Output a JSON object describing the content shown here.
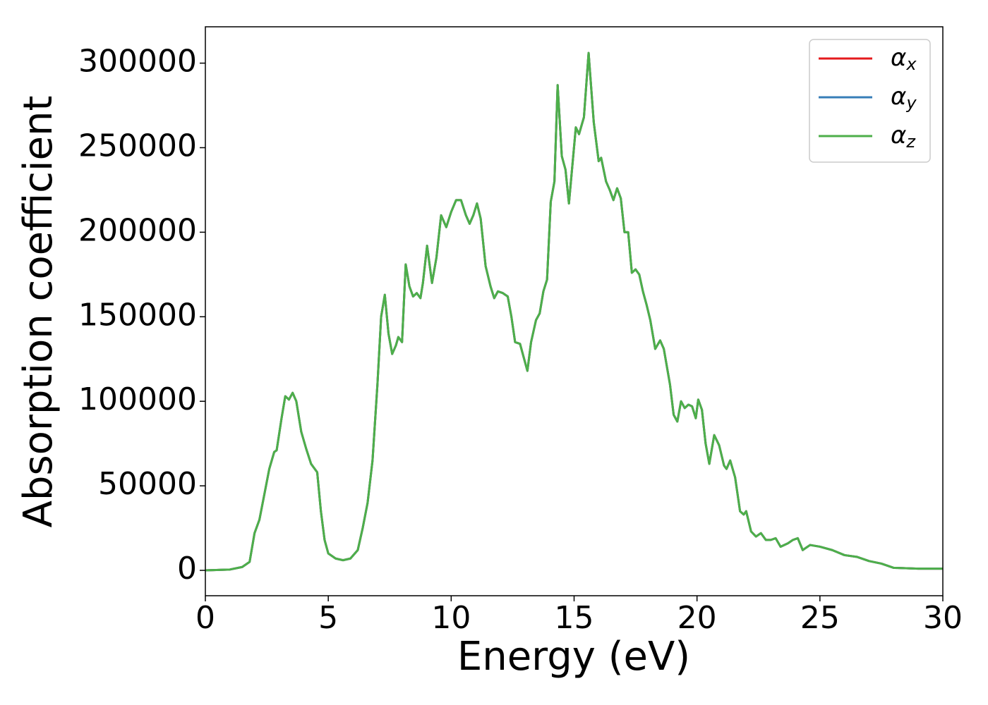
{
  "chart_data": {
    "type": "line",
    "xlabel": "Energy (eV)",
    "ylabel": "Absorption coefficient",
    "xlim": [
      0,
      30
    ],
    "ylim": [
      -15000,
      321500
    ],
    "xticks": [
      0,
      5,
      10,
      15,
      20,
      25,
      30
    ],
    "yticks": [
      0,
      50000,
      100000,
      150000,
      200000,
      250000,
      300000
    ],
    "legend": "upper right",
    "grid": false,
    "x": [
      0,
      1,
      1.5,
      1.8,
      2.0,
      2.2,
      2.4,
      2.6,
      2.8,
      2.9,
      3.1,
      3.25,
      3.4,
      3.55,
      3.7,
      3.9,
      4.1,
      4.3,
      4.4,
      4.55,
      4.7,
      4.85,
      5.0,
      5.3,
      5.6,
      5.9,
      6.2,
      6.4,
      6.6,
      6.8,
      7.0,
      7.15,
      7.3,
      7.45,
      7.6,
      7.75,
      7.85,
      8.0,
      8.15,
      8.3,
      8.45,
      8.6,
      8.75,
      8.85,
      9.02,
      9.22,
      9.4,
      9.59,
      9.8,
      10.0,
      10.2,
      10.4,
      10.6,
      10.75,
      10.9,
      11.05,
      11.2,
      11.4,
      11.6,
      11.75,
      11.9,
      12.1,
      12.3,
      12.45,
      12.6,
      12.8,
      12.95,
      13.1,
      13.25,
      13.45,
      13.6,
      13.75,
      13.9,
      14.05,
      14.2,
      14.33,
      14.5,
      14.65,
      14.79,
      15.07,
      15.2,
      15.4,
      15.59,
      15.8,
      16.0,
      16.1,
      16.3,
      16.45,
      16.6,
      16.75,
      16.9,
      17.05,
      17.2,
      17.35,
      17.5,
      17.65,
      17.8,
      17.95,
      18.1,
      18.3,
      18.5,
      18.65,
      18.9,
      19.05,
      19.2,
      19.35,
      19.5,
      19.65,
      19.8,
      19.95,
      20.05,
      20.2,
      20.35,
      20.5,
      20.7,
      20.9,
      21.1,
      21.2,
      21.35,
      21.55,
      21.75,
      21.9,
      22.0,
      22.2,
      22.4,
      22.6,
      22.8,
      23.0,
      23.2,
      23.4,
      23.7,
      23.9,
      24.1,
      24.3,
      24.6,
      25.0,
      25.5,
      26.0,
      26.5,
      27.0,
      27.5,
      28.0,
      29.0,
      30.0
    ],
    "series": [
      {
        "name": "αx",
        "color": "#e41a1c",
        "values": [
          0,
          500,
          2000,
          5000,
          22000,
          30000,
          45000,
          60000,
          70000,
          71000,
          90000,
          103000,
          101000,
          105000,
          100000,
          82000,
          72000,
          63000,
          61000,
          58000,
          35000,
          18000,
          10000,
          7000,
          6000,
          7000,
          12000,
          25000,
          40000,
          65000,
          110000,
          150000,
          163000,
          140000,
          128000,
          133000,
          138000,
          135000,
          181000,
          168000,
          162000,
          164000,
          161000,
          170000,
          192000,
          170000,
          185000,
          210000,
          203000,
          212000,
          219000,
          219000,
          210000,
          205000,
          210000,
          217000,
          208000,
          180000,
          168000,
          161000,
          165000,
          164000,
          162000,
          150000,
          135000,
          134000,
          126000,
          118000,
          135000,
          148000,
          152000,
          165000,
          172000,
          218000,
          230000,
          287000,
          245000,
          237000,
          217000,
          262000,
          258000,
          268000,
          306000,
          265000,
          242000,
          244000,
          230000,
          225000,
          219000,
          226000,
          220000,
          200000,
          200000,
          176000,
          178000,
          175000,
          165000,
          157000,
          148000,
          131000,
          136000,
          131000,
          110000,
          92000,
          88000,
          100000,
          96000,
          98000,
          97000,
          90000,
          101000,
          95000,
          75000,
          63000,
          80000,
          74000,
          62000,
          60000,
          65000,
          55000,
          35000,
          33000,
          35000,
          23000,
          20000,
          22000,
          18000,
          18000,
          19000,
          14000,
          16000,
          18000,
          19000,
          12000,
          15000,
          14000,
          12000,
          9000,
          8000,
          5500,
          4000,
          1500,
          1000,
          1000
        ]
      },
      {
        "name": "αy",
        "color": "#377eb8",
        "values": [
          0,
          500,
          2000,
          5000,
          22000,
          30000,
          45000,
          60000,
          70000,
          71000,
          90000,
          103000,
          101000,
          105000,
          100000,
          82000,
          72000,
          63000,
          61000,
          58000,
          35000,
          18000,
          10000,
          7000,
          6000,
          7000,
          12000,
          25000,
          40000,
          65000,
          110000,
          150000,
          163000,
          140000,
          128000,
          133000,
          138000,
          135000,
          181000,
          168000,
          162000,
          164000,
          161000,
          170000,
          192000,
          170000,
          185000,
          210000,
          203000,
          212000,
          219000,
          219000,
          210000,
          205000,
          210000,
          217000,
          208000,
          180000,
          168000,
          161000,
          165000,
          164000,
          162000,
          150000,
          135000,
          134000,
          126000,
          118000,
          135000,
          148000,
          152000,
          165000,
          172000,
          218000,
          230000,
          287000,
          245000,
          237000,
          217000,
          262000,
          258000,
          268000,
          306000,
          265000,
          242000,
          244000,
          230000,
          225000,
          219000,
          226000,
          220000,
          200000,
          200000,
          176000,
          178000,
          175000,
          165000,
          157000,
          148000,
          131000,
          136000,
          131000,
          110000,
          92000,
          88000,
          100000,
          96000,
          98000,
          97000,
          90000,
          101000,
          95000,
          75000,
          63000,
          80000,
          74000,
          62000,
          60000,
          65000,
          55000,
          35000,
          33000,
          35000,
          23000,
          20000,
          22000,
          18000,
          18000,
          19000,
          14000,
          16000,
          18000,
          19000,
          12000,
          15000,
          14000,
          12000,
          9000,
          8000,
          5500,
          4000,
          1500,
          1000,
          1000
        ]
      },
      {
        "name": "αz",
        "color": "#4daf4a",
        "values": [
          0,
          500,
          2000,
          5000,
          22000,
          30000,
          45000,
          60000,
          70000,
          71000,
          90000,
          103000,
          101000,
          105000,
          100000,
          82000,
          72000,
          63000,
          61000,
          58000,
          35000,
          18000,
          10000,
          7000,
          6000,
          7000,
          12000,
          25000,
          40000,
          65000,
          110000,
          150000,
          163000,
          140000,
          128000,
          133000,
          138000,
          135000,
          181000,
          168000,
          162000,
          164000,
          161000,
          170000,
          192000,
          170000,
          185000,
          210000,
          203000,
          212000,
          219000,
          219000,
          210000,
          205000,
          210000,
          217000,
          208000,
          180000,
          168000,
          161000,
          165000,
          164000,
          162000,
          150000,
          135000,
          134000,
          126000,
          118000,
          135000,
          148000,
          152000,
          165000,
          172000,
          218000,
          230000,
          287000,
          245000,
          237000,
          217000,
          262000,
          258000,
          268000,
          306000,
          265000,
          242000,
          244000,
          230000,
          225000,
          219000,
          226000,
          220000,
          200000,
          200000,
          176000,
          178000,
          175000,
          165000,
          157000,
          148000,
          131000,
          136000,
          131000,
          110000,
          92000,
          88000,
          100000,
          96000,
          98000,
          97000,
          90000,
          101000,
          95000,
          75000,
          63000,
          80000,
          74000,
          62000,
          60000,
          65000,
          55000,
          35000,
          33000,
          35000,
          23000,
          20000,
          22000,
          18000,
          18000,
          19000,
          14000,
          16000,
          18000,
          19000,
          12000,
          15000,
          14000,
          12000,
          9000,
          8000,
          5500,
          4000,
          1500,
          1000,
          1000
        ]
      }
    ]
  }
}
